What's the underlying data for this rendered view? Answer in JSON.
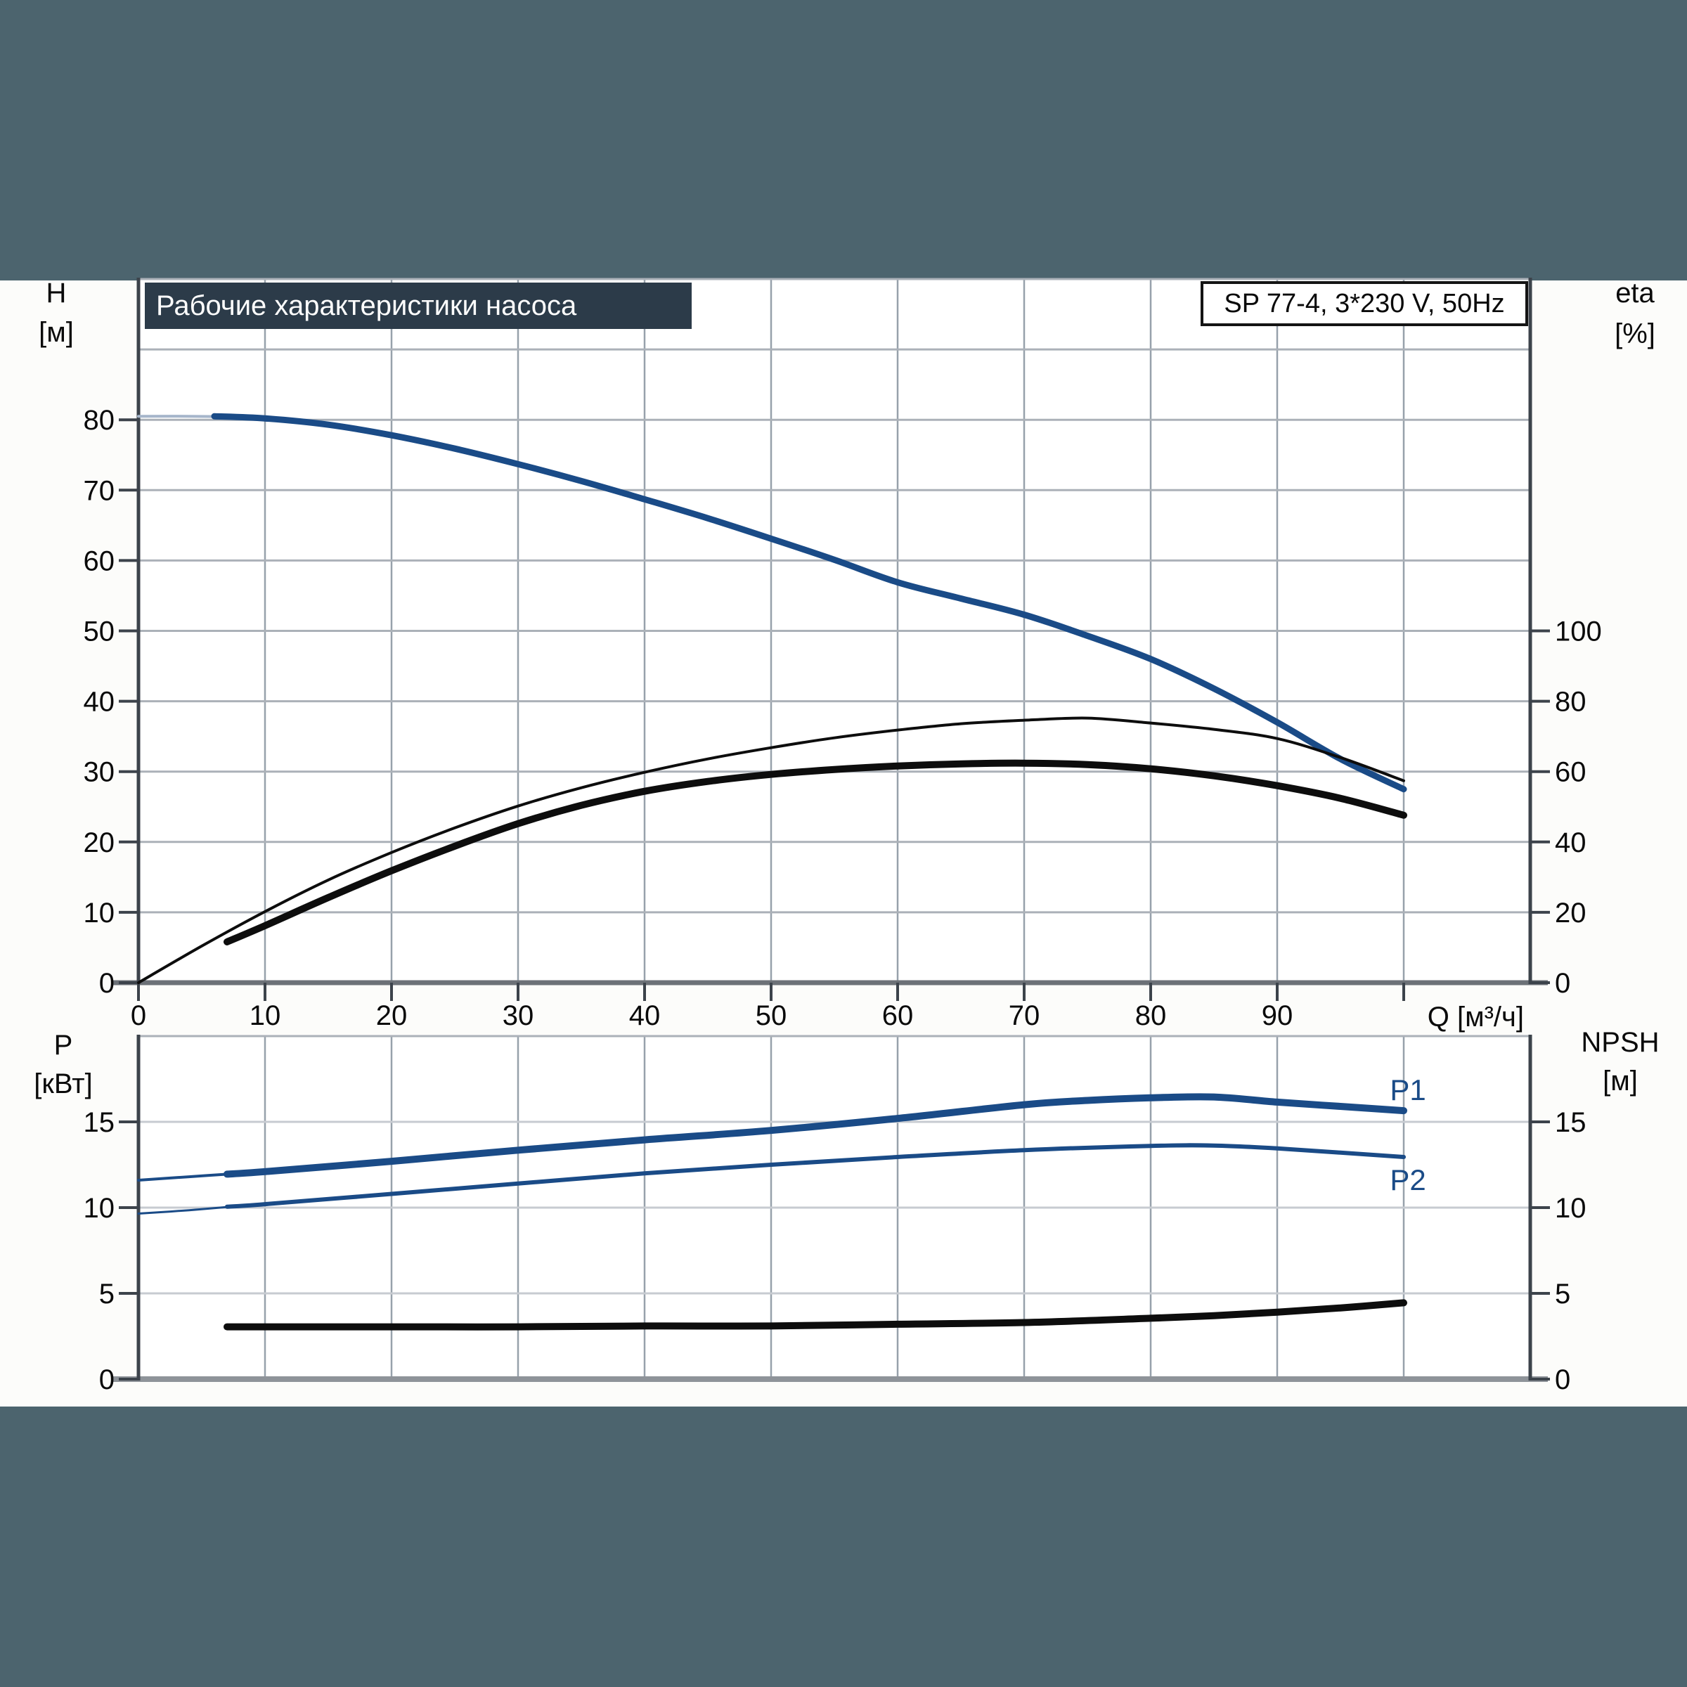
{
  "header": {
    "title": "Рабочие характеристики насоса",
    "model": "SP 77-4, 3*230 V, 50Hz"
  },
  "labels": {
    "h": "H",
    "h_unit": "[м]",
    "eta": "eta",
    "eta_unit": "[%]",
    "q_axis": "Q [м³/ч]",
    "p": "P",
    "p_unit": "[кВт]",
    "npsh": "NPSH",
    "npsh_unit": "[м]",
    "p1": "P1",
    "p2": "P2"
  },
  "colors": {
    "page_background": "#4c646e",
    "panel_background": "#fcfcfa",
    "title_bar": "#2c3b49",
    "title_text": "#fdfdfd",
    "curve_blue": "#1a4b87",
    "curve_blue_light_start": "#a6b6cb",
    "curve_black": "#0d0d0d",
    "grid_vertical": "#97a1ab",
    "grid_horizontal_top": "#abb1b8",
    "grid_horizontal_bottom": "#c7cbd1",
    "axis_frame": "#3c434b",
    "x_axis_top": "#6c7177",
    "x_axis_bottom": "#8e9399",
    "tick_text": "#0a0a0a"
  },
  "chart_data": [
    {
      "id": "pump-performance",
      "type": "line",
      "title": "Рабочие характеристики насоса",
      "x_axis": {
        "label": "Q [м³/ч]",
        "min": 0,
        "max": 110,
        "grid_step": 10,
        "ticks": [
          0,
          10,
          20,
          30,
          40,
          50,
          60,
          70,
          80,
          90
        ],
        "unlabeled_tick": 100
      },
      "y_left": {
        "name": "H",
        "unit": "[м]",
        "min": 0,
        "max": 100,
        "grid_step": 10,
        "ticks": [
          0,
          10,
          20,
          30,
          40,
          50,
          60,
          70,
          80
        ]
      },
      "y_right": {
        "name": "eta",
        "unit": "[%]",
        "min": 0,
        "max": 200,
        "ticks": [
          0,
          20,
          40,
          60,
          80,
          100
        ]
      },
      "grid": true,
      "legend": "none",
      "series": [
        {
          "name": "H-curve-start",
          "axis": "left",
          "color": "#a6b6cb",
          "width": 4,
          "points": [
            [
              0,
              80.5
            ],
            [
              4,
              80.5
            ],
            [
              8,
              80.4
            ]
          ]
        },
        {
          "name": "H-curve",
          "axis": "left",
          "color": "#1a4b87",
          "width": 9,
          "points": [
            [
              6,
              80.5
            ],
            [
              10,
              80.2
            ],
            [
              15,
              79.3
            ],
            [
              20,
              77.8
            ],
            [
              25,
              75.9
            ],
            [
              30,
              73.7
            ],
            [
              35,
              71.3
            ],
            [
              40,
              68.7
            ],
            [
              45,
              66.0
            ],
            [
              50,
              63.1
            ],
            [
              55,
              60.1
            ],
            [
              60,
              56.9
            ],
            [
              65,
              54.6
            ],
            [
              70,
              52.3
            ],
            [
              75,
              49.3
            ],
            [
              80,
              46.0
            ],
            [
              85,
              41.8
            ],
            [
              90,
              37.0
            ],
            [
              95,
              31.8
            ],
            [
              100,
              27.5
            ]
          ]
        },
        {
          "name": "eta-pump",
          "axis": "right",
          "color": "#0d0d0d",
          "width": 4,
          "points": [
            [
              0,
              0
            ],
            [
              5,
              10.4
            ],
            [
              10,
              20.2
            ],
            [
              15,
              29.2
            ],
            [
              20,
              37.0
            ],
            [
              25,
              44.0
            ],
            [
              30,
              50.2
            ],
            [
              35,
              55.4
            ],
            [
              40,
              59.8
            ],
            [
              45,
              63.6
            ],
            [
              50,
              66.8
            ],
            [
              55,
              69.6
            ],
            [
              60,
              71.8
            ],
            [
              65,
              73.6
            ],
            [
              70,
              74.6
            ],
            [
              75,
              75.2
            ],
            [
              80,
              73.8
            ],
            [
              85,
              72.0
            ],
            [
              90,
              69.4
            ],
            [
              95,
              64.0
            ],
            [
              100,
              57.4
            ]
          ]
        },
        {
          "name": "eta-pump-motor",
          "axis": "right",
          "color": "#0d0d0d",
          "width": 10,
          "points": [
            [
              7,
              11.6
            ],
            [
              10,
              16.2
            ],
            [
              15,
              24.2
            ],
            [
              20,
              31.8
            ],
            [
              25,
              38.8
            ],
            [
              30,
              45.2
            ],
            [
              35,
              50.4
            ],
            [
              40,
              54.4
            ],
            [
              45,
              57.2
            ],
            [
              50,
              59.2
            ],
            [
              55,
              60.6
            ],
            [
              60,
              61.6
            ],
            [
              65,
              62.2
            ],
            [
              70,
              62.4
            ],
            [
              75,
              62.0
            ],
            [
              80,
              60.8
            ],
            [
              85,
              58.8
            ],
            [
              90,
              56.0
            ],
            [
              95,
              52.4
            ],
            [
              100,
              47.6
            ]
          ]
        }
      ]
    },
    {
      "id": "power-npsh",
      "type": "line",
      "x_axis": {
        "label": "",
        "min": 0,
        "max": 110,
        "grid_step": 10,
        "ticks": []
      },
      "y_left": {
        "name": "P",
        "unit": "[кВт]",
        "min": 0,
        "max": 20,
        "grid_step": 5,
        "ticks": [
          0,
          5,
          10,
          15
        ]
      },
      "y_right": {
        "name": "NPSH",
        "unit": "[м]",
        "min": 0,
        "max": 20,
        "ticks": [
          0,
          5,
          10,
          15
        ]
      },
      "grid": true,
      "legend": "inline-labels",
      "series": [
        {
          "name": "P1-start",
          "axis": "left",
          "color": "#1a4b87",
          "width": 4,
          "points": [
            [
              0,
              11.6
            ],
            [
              4,
              11.8
            ],
            [
              8,
              12.0
            ]
          ]
        },
        {
          "name": "P1",
          "label": "P1",
          "axis": "left",
          "color": "#1a4b87",
          "width": 10,
          "points": [
            [
              7,
              11.95
            ],
            [
              10,
              12.1
            ],
            [
              20,
              12.7
            ],
            [
              30,
              13.35
            ],
            [
              40,
              13.95
            ],
            [
              50,
              14.5
            ],
            [
              60,
              15.2
            ],
            [
              70,
              16.0
            ],
            [
              75,
              16.25
            ],
            [
              80,
              16.4
            ],
            [
              85,
              16.45
            ],
            [
              90,
              16.15
            ],
            [
              95,
              15.9
            ],
            [
              100,
              15.65
            ]
          ]
        },
        {
          "name": "P2-start",
          "axis": "left",
          "color": "#1a4b87",
          "width": 3,
          "points": [
            [
              0,
              9.65
            ],
            [
              4,
              9.85
            ],
            [
              8,
              10.1
            ]
          ]
        },
        {
          "name": "P2",
          "label": "P2",
          "axis": "left",
          "color": "#1a4b87",
          "width": 6,
          "points": [
            [
              7,
              10.05
            ],
            [
              10,
              10.2
            ],
            [
              20,
              10.8
            ],
            [
              30,
              11.4
            ],
            [
              40,
              12.0
            ],
            [
              50,
              12.5
            ],
            [
              60,
              12.95
            ],
            [
              70,
              13.35
            ],
            [
              80,
              13.6
            ],
            [
              85,
              13.62
            ],
            [
              90,
              13.45
            ],
            [
              100,
              12.95
            ]
          ]
        },
        {
          "name": "NPSH",
          "axis": "right",
          "color": "#0d0d0d",
          "width": 10,
          "points": [
            [
              7,
              3.05
            ],
            [
              20,
              3.05
            ],
            [
              30,
              3.05
            ],
            [
              40,
              3.1
            ],
            [
              50,
              3.1
            ],
            [
              60,
              3.2
            ],
            [
              70,
              3.3
            ],
            [
              80,
              3.55
            ],
            [
              85,
              3.7
            ],
            [
              90,
              3.9
            ],
            [
              95,
              4.15
            ],
            [
              100,
              4.45
            ]
          ]
        }
      ]
    }
  ]
}
